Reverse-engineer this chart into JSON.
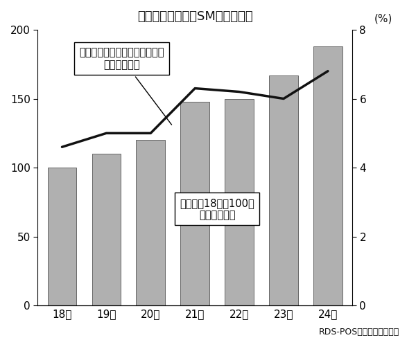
{
  "title": "タルタルソースのSM販売額推移",
  "years": [
    "18年",
    "19年",
    "20年",
    "21年",
    "22年",
    "23年",
    "24年"
  ],
  "bar_values": [
    100,
    110,
    120,
    148,
    150,
    167,
    188
  ],
  "line_values": [
    4.6,
    5.0,
    5.0,
    6.3,
    6.2,
    6.0,
    6.8
  ],
  "bar_color": "#b0b0b0",
  "bar_edgecolor": "#666666",
  "line_color": "#111111",
  "left_ylim": [
    0,
    200
  ],
  "right_ylim": [
    0,
    8
  ],
  "left_yticks": [
    0,
    50,
    100,
    150,
    200
  ],
  "right_yticks": [
    0,
    2,
    4,
    6,
    8
  ],
  "right_ylabel_unit": "(%)",
  "annotation_line_text": "マヨネーズカテゴリー内シェア\n（右目盛り）",
  "annotation_bar_text": "販売額（18年＝100）\n（左目盛り）",
  "source": "RDS-POS全国スーパー実績",
  "background_color": "#ffffff",
  "title_fontsize": 13,
  "tick_fontsize": 11,
  "annotation_fontsize": 10.5,
  "source_fontsize": 9
}
